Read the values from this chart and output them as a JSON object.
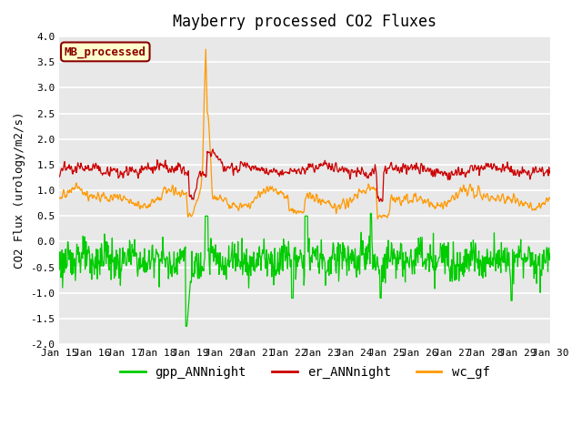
{
  "title": "Mayberry processed CO2 Fluxes",
  "ylabel": "CO2 Flux (urology/m2/s)",
  "ylim": [
    -2.0,
    4.0
  ],
  "yticks": [
    -2.0,
    -1.5,
    -1.0,
    -0.5,
    0.0,
    0.5,
    1.0,
    1.5,
    2.0,
    2.5,
    3.0,
    3.5,
    4.0
  ],
  "xtick_labels": [
    "Jan 15",
    "Jan 16",
    "Jan 17",
    "Jan 18",
    "Jan 19",
    "Jan 20",
    "Jan 21",
    "Jan 22",
    "Jan 23",
    "Jan 24",
    "Jan 25",
    "Jan 26",
    "Jan 27",
    "Jan 28",
    "Jan 29",
    "Jan 30"
  ],
  "gpp_color": "#00cc00",
  "er_color": "#cc0000",
  "wc_color": "#ff9900",
  "legend_labels": [
    "gpp_ANNnight",
    "er_ANNnight",
    "wc_gf"
  ],
  "annotation_text": "MB_processed",
  "annotation_color": "#880000",
  "annotation_bg": "#ffffcc",
  "fig_bg": "#ffffff",
  "plot_bg": "#e8e8e8",
  "grid_color": "#ffffff",
  "title_fontsize": 12,
  "axis_fontsize": 9,
  "tick_fontsize": 8,
  "legend_fontsize": 10
}
